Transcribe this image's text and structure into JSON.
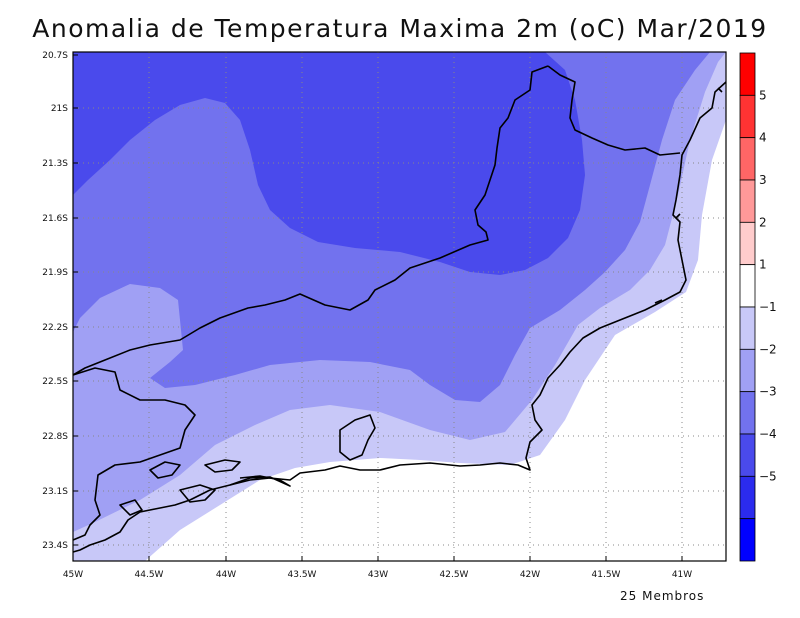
{
  "title": "Anomalia de Temperatura Maxima 2m (oC) Mar/2019",
  "footer": "25 Membros",
  "map": {
    "lon_ticks": [
      "45W",
      "44.5W",
      "44W",
      "43.5W",
      "43W",
      "42.5W",
      "42W",
      "41.5W",
      "41W"
    ],
    "lat_ticks": [
      "20.7S",
      "21S",
      "21.3S",
      "21.6S",
      "21.9S",
      "22.2S",
      "22.5S",
      "22.8S",
      "23.1S",
      "23.4S"
    ],
    "lon_range": [
      -45.0,
      -40.7
    ],
    "lat_range": [
      -23.5,
      -20.7
    ],
    "grid": true
  },
  "colorbar": {
    "labels": [
      "5",
      "4",
      "3",
      "2",
      "1",
      "−1",
      "−2",
      "−3",
      "−4",
      "−5"
    ],
    "colors": [
      "#ff0000",
      "#ff3333",
      "#ff6666",
      "#ff9999",
      "#ffcccc",
      "#ffffff",
      "#c8c8f8",
      "#a0a0f4",
      "#7272ee",
      "#4a4aec",
      "#2b2bee",
      "#0000ff"
    ]
  },
  "regions": [
    {
      "name": "shading-minus-4-to-3",
      "value": -3.5
    },
    {
      "name": "shading-minus-3-to-2",
      "value": -2.5
    },
    {
      "name": "shading-minus-2-to-1",
      "value": -1.5
    },
    {
      "name": "shading-minus-1-to-1",
      "value": 0
    }
  ]
}
